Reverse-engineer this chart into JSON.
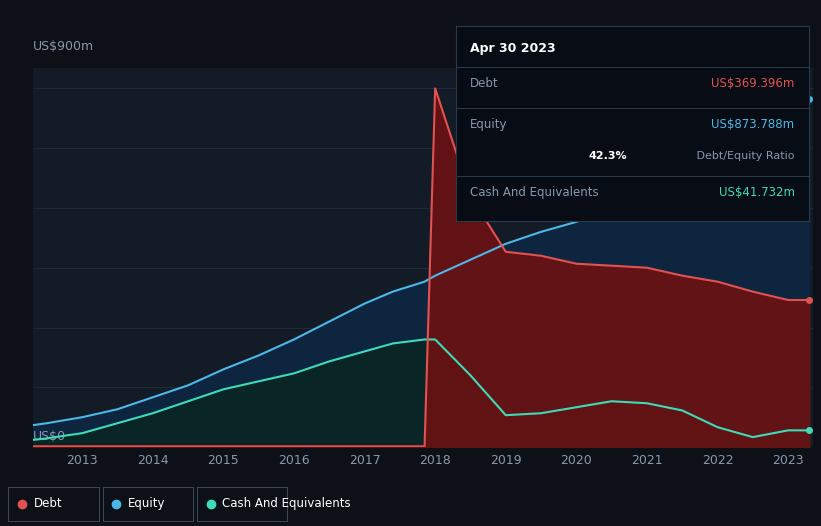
{
  "background_color": "#0d1117",
  "plot_bg_color": "#131b27",
  "grid_color": "#1e2d3d",
  "debt_color": "#e05252",
  "equity_color": "#4db8e8",
  "cash_color": "#3ddbb8",
  "debt_fill_color": "#6b1212",
  "equity_fill_color": "#0e2540",
  "cash_fill_color": "#0a2525",
  "legend_items": [
    {
      "label": "Debt",
      "color": "#e05252"
    },
    {
      "label": "Equity",
      "color": "#4db8e8"
    },
    {
      "label": "Cash And Equivalents",
      "color": "#3ddbb8"
    }
  ],
  "ylabel": "US$900m",
  "y0label": "US$0",
  "x_ticks": [
    2013,
    2014,
    2015,
    2016,
    2017,
    2018,
    2019,
    2020,
    2021,
    2022,
    2023
  ],
  "title_box": {
    "date": "Apr 30 2023",
    "debt_label": "Debt",
    "debt_value": "US$369.396m",
    "equity_label": "Equity",
    "equity_value": "US$873.788m",
    "ratio_bold": "42.3%",
    "ratio_text": " Debt/Equity Ratio",
    "cash_label": "Cash And Equivalents",
    "cash_value": "US$41.732m"
  },
  "years": [
    2012.3,
    2012.5,
    2013.0,
    2013.5,
    2014.0,
    2014.5,
    2015.0,
    2015.5,
    2016.0,
    2016.5,
    2017.0,
    2017.4,
    2017.85,
    2018.0,
    2018.5,
    2019.0,
    2019.5,
    2020.0,
    2020.5,
    2021.0,
    2021.5,
    2022.0,
    2022.5,
    2023.0,
    2023.3
  ],
  "debt": [
    2,
    2,
    2,
    2,
    2,
    2,
    2,
    2,
    2,
    2,
    2,
    2,
    2,
    900,
    630,
    490,
    480,
    460,
    455,
    450,
    430,
    415,
    390,
    369,
    369
  ],
  "equity": [
    55,
    60,
    75,
    95,
    125,
    155,
    195,
    230,
    270,
    315,
    360,
    390,
    415,
    430,
    470,
    510,
    540,
    565,
    600,
    645,
    680,
    730,
    775,
    874,
    874
  ],
  "cash": [
    18,
    22,
    35,
    60,
    85,
    115,
    145,
    165,
    185,
    215,
    240,
    260,
    270,
    270,
    180,
    80,
    85,
    100,
    115,
    110,
    92,
    50,
    25,
    42,
    42
  ]
}
